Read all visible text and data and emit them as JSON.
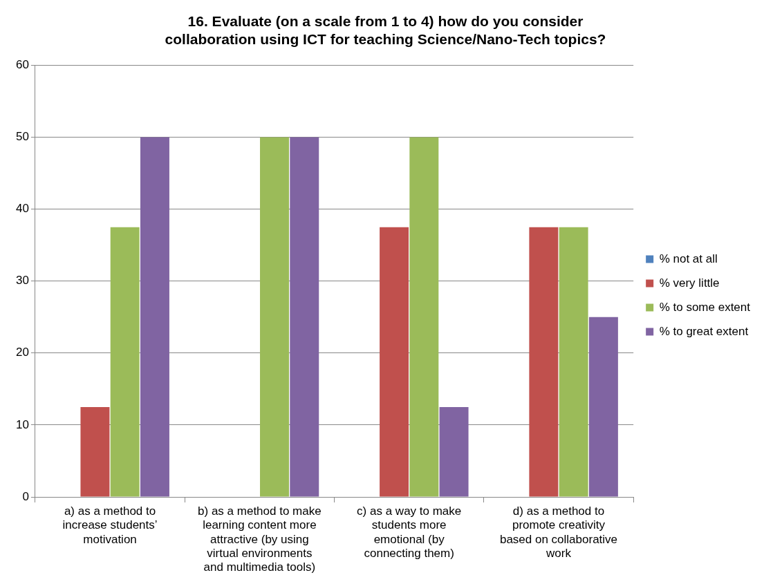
{
  "chart_data": {
    "type": "bar",
    "title": "16. Evaluate (on a scale from 1 to 4) how do you consider collaboration using ICT for teaching Science/Nano-Tech topics?",
    "categories": [
      "a) as a method to increase students’ motivation",
      "b) as a method to make learning content more attractive (by using virtual environments and multimedia tools)",
      "c) as a way to make students more emotional (by connecting them)",
      "d) as a method to promote creativity based on collaborative work"
    ],
    "series": [
      {
        "name": "% not at all",
        "color": "#4f81bd",
        "values": [
          0,
          0,
          0,
          0
        ]
      },
      {
        "name": "% very little",
        "color": "#c0504d",
        "values": [
          12.5,
          0,
          37.5,
          37.5
        ]
      },
      {
        "name": "% to some extent",
        "color": "#9bbb59",
        "values": [
          37.5,
          50,
          50,
          37.5
        ]
      },
      {
        "name": "% to great extent",
        "color": "#8064a2",
        "values": [
          50,
          50,
          12.5,
          25
        ]
      }
    ],
    "ylim": [
      0,
      60
    ],
    "yticks": [
      0,
      10,
      20,
      30,
      40,
      50,
      60
    ],
    "grid": "y",
    "legend": "right"
  }
}
